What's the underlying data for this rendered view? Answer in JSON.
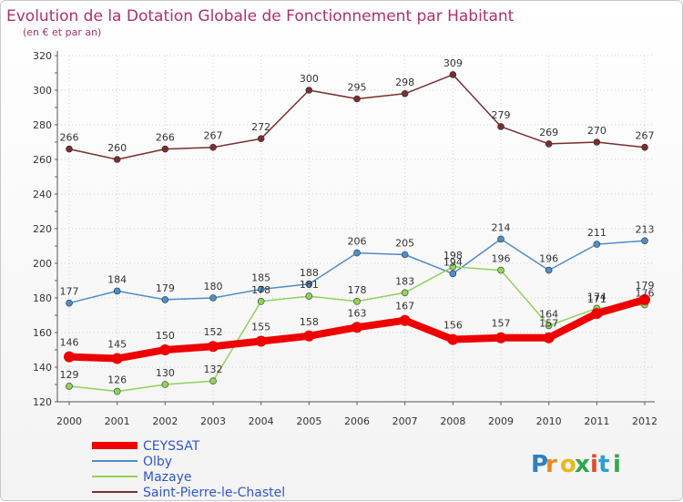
{
  "chart_data": {
    "type": "line",
    "title": "Evolution de la Dotation Globale de Fonctionnement par Habitant",
    "subtitle": "(en € et par an)",
    "x": [
      "2000",
      "2001",
      "2002",
      "2003",
      "2004",
      "2005",
      "2006",
      "2007",
      "2008",
      "2009",
      "2010",
      "2011",
      "2012"
    ],
    "ylim": [
      120,
      320
    ],
    "yticks": [
      "120",
      "140",
      "160",
      "180",
      "200",
      "220",
      "240",
      "260",
      "280",
      "300",
      "320"
    ],
    "grid": true,
    "legend_position": "bottom-left",
    "series": [
      {
        "name": "CEYSSAT",
        "color": "#ee0000",
        "values": [
          146,
          145,
          150,
          152,
          155,
          158,
          163,
          167,
          156,
          157,
          157,
          171,
          179
        ],
        "labels": [
          "146",
          "145",
          "150",
          "152",
          "155",
          "158",
          "163",
          "167",
          "156",
          "157",
          "157",
          "171",
          "179"
        ]
      },
      {
        "name": "Olby",
        "color": "#4f8ec6",
        "values": [
          177,
          184,
          179,
          180,
          185,
          188,
          206,
          205,
          194,
          214,
          196,
          211,
          213
        ],
        "labels": [
          "177",
          "184",
          "179",
          "180",
          "185",
          "188",
          "206",
          "205",
          "194",
          "214",
          "196",
          "211",
          "213"
        ]
      },
      {
        "name": "Mazaye",
        "color": "#8fd35a",
        "values": [
          129,
          126,
          130,
          132,
          178,
          181,
          178,
          183,
          198,
          196,
          164,
          174,
          176
        ],
        "labels": [
          "129",
          "126",
          "130",
          "132",
          "178",
          "181",
          "178",
          "183",
          "198",
          "196",
          "164",
          "174",
          "176"
        ]
      },
      {
        "name": "Saint-Pierre-le-Chastel",
        "color": "#7a2e2e",
        "values": [
          266,
          260,
          266,
          267,
          272,
          300,
          295,
          298,
          309,
          279,
          269,
          270,
          267
        ],
        "labels": [
          "266",
          "260",
          "266",
          "267",
          "272",
          "300",
          "295",
          "298",
          "309",
          "279",
          "269",
          "270",
          "267"
        ]
      }
    ]
  },
  "brand": {
    "letters": [
      "P",
      "r",
      "o",
      "x",
      "i",
      "t",
      "i"
    ],
    "colors": [
      "#2f7fc2",
      "#e98a1a",
      "#e9b81a",
      "#2fa84a",
      "#e04a2a",
      "#2f9fd2",
      "#2fa84a"
    ]
  }
}
